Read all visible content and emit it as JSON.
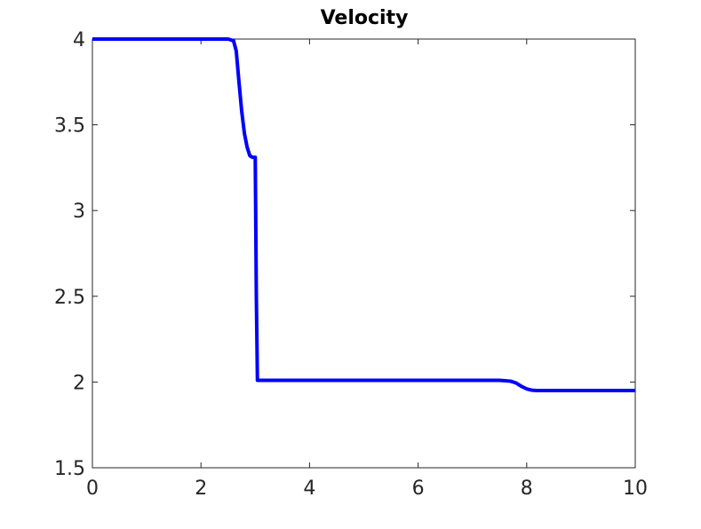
{
  "chart_data": {
    "type": "line",
    "title": "Velocity",
    "x": [
      0,
      2.5,
      2.6,
      2.65,
      2.7,
      2.75,
      2.8,
      2.85,
      2.9,
      2.95,
      3.0,
      3.02,
      3.04,
      3.06,
      5,
      7.5,
      7.7,
      7.8,
      7.9,
      8.0,
      8.1,
      8.2,
      10
    ],
    "series": [
      {
        "name": "Velocity",
        "color": "#0000ff",
        "values": [
          4,
          4,
          3.99,
          3.93,
          3.75,
          3.58,
          3.45,
          3.37,
          3.32,
          3.31,
          3.31,
          2.5,
          2.01,
          2.01,
          2.01,
          2.01,
          2.005,
          1.995,
          1.975,
          1.96,
          1.952,
          1.95,
          1.95
        ]
      }
    ],
    "xlim": [
      0,
      10
    ],
    "xticks": [
      0,
      2,
      4,
      6,
      8,
      10
    ],
    "ylim": [
      1.5,
      4
    ],
    "yticks": [
      1.5,
      2,
      2.5,
      3,
      3.5,
      4
    ]
  }
}
